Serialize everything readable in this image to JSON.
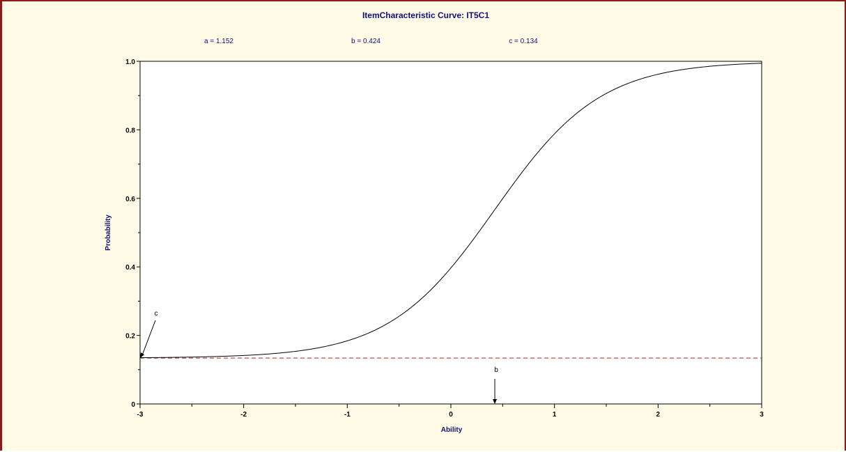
{
  "chart_data": {
    "type": "line",
    "title": "ItemCharacteristic Curve: IT5C1",
    "params": [
      {
        "label": "a",
        "text": "a = 1.152",
        "value": 1.152
      },
      {
        "label": "b",
        "text": "b = 0.424",
        "value": 0.424
      },
      {
        "label": "c",
        "text": "c = 0.134",
        "value": 0.134
      }
    ],
    "xlabel": "Ability",
    "ylabel": "Probability",
    "xlim": [
      -3,
      3
    ],
    "ylim": [
      0,
      1
    ],
    "xticks": [
      -3,
      -2,
      -1,
      0,
      1,
      2,
      3
    ],
    "yticks": [
      0,
      0.2,
      0.4,
      0.6,
      0.8,
      1.0
    ],
    "xtick_labels": [
      "-3",
      "-2",
      "-1",
      "0",
      "1",
      "2",
      "3"
    ],
    "ytick_labels": [
      "0",
      "0.2",
      "0.4",
      "0.6",
      "0.8",
      "1.0"
    ],
    "curve": {
      "model": "3PL",
      "D": 1.7,
      "a": 1.152,
      "b": 0.424,
      "c": 0.134
    },
    "guessing_line": {
      "y": 0.134,
      "style": "dashed",
      "color": "#a52a2a"
    },
    "annotations": [
      {
        "text": "c",
        "points_to": {
          "x": -3,
          "y": 0.134
        }
      },
      {
        "text": "b",
        "points_to": {
          "x": 0.424,
          "y": 0
        }
      }
    ],
    "grid": false,
    "colors": {
      "curve": "#000000",
      "title": "#0f0f80",
      "frame": "#8b1a1a",
      "background": "#fffbe6"
    }
  }
}
